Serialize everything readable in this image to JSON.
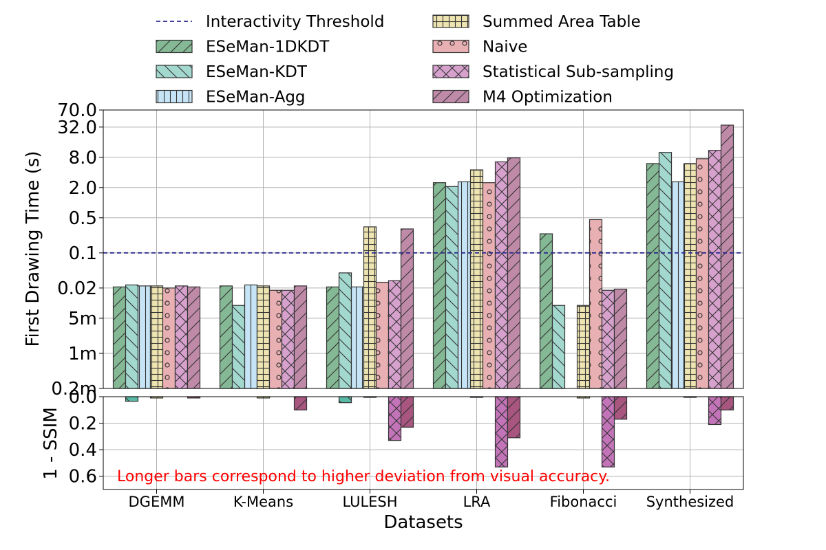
{
  "chart_data": {
    "type": "bar",
    "xlabel": "Datasets",
    "categories": [
      "DGEMM",
      "K-Means",
      "LULESH",
      "LRA",
      "Fibonacci",
      "Synthesized"
    ],
    "threshold": {
      "name": "Interactivity Threshold",
      "value": 0.1,
      "color": "#2b2b8f"
    },
    "legend_position": "top",
    "grid": true,
    "top": {
      "ylabel": "First Drawing Time (s)",
      "scale": "log",
      "ylim": [
        0.0002,
        70.0
      ],
      "ticks": [
        {
          "value": 0.0002,
          "label": "0.2m"
        },
        {
          "value": 0.001,
          "label": "1m"
        },
        {
          "value": 0.005,
          "label": "5m"
        },
        {
          "value": 0.02,
          "label": "0.02"
        },
        {
          "value": 0.1,
          "label": "0.1"
        },
        {
          "value": 0.5,
          "label": "0.5"
        },
        {
          "value": 2.0,
          "label": "2.0"
        },
        {
          "value": 8.0,
          "label": "8.0"
        },
        {
          "value": 32.0,
          "label": "32.0"
        },
        {
          "value": 70.0,
          "label": "70.0"
        }
      ],
      "series": [
        {
          "name": "ESeMan-1DKDT",
          "color": "#85b894",
          "pattern": "diag",
          "values": [
            0.021,
            0.022,
            0.021,
            2.5,
            0.24,
            6.0
          ]
        },
        {
          "name": "ESeMan-KDT",
          "color": "#a3d8cf",
          "pattern": "backdiag",
          "values": [
            0.023,
            0.009,
            0.04,
            2.1,
            0.009,
            10.0
          ]
        },
        {
          "name": "ESeMan-Agg",
          "color": "#c6e4f5",
          "pattern": "vert",
          "values": [
            0.022,
            0.023,
            0.021,
            2.6,
            null,
            2.6
          ]
        },
        {
          "name": "Summed Area Table",
          "color": "#ede4b1",
          "pattern": "grid",
          "values": [
            0.022,
            0.022,
            0.33,
            4.5,
            0.009,
            6.0
          ]
        },
        {
          "name": "Naive",
          "color": "#e8b0b3",
          "pattern": "dots",
          "values": [
            0.02,
            0.018,
            0.026,
            2.5,
            0.46,
            7.5
          ]
        },
        {
          "name": "Statistical Sub-sampling",
          "color": "#d7a1ce",
          "pattern": "cross",
          "values": [
            0.022,
            0.018,
            0.028,
            6.5,
            0.018,
            11.0
          ]
        },
        {
          "name": "M4 Optimization",
          "color": "#bf8aa8",
          "pattern": "diag",
          "values": [
            0.021,
            0.022,
            0.3,
            7.8,
            0.019,
            35.0
          ]
        }
      ]
    },
    "bottom": {
      "ylabel": "1 - SSIM",
      "ylim": [
        0.0,
        0.7
      ],
      "inverted": true,
      "ticks": [
        {
          "value": 0.0,
          "label": "0.0"
        },
        {
          "value": 0.2,
          "label": "0.2"
        },
        {
          "value": 0.4,
          "label": "0.4"
        },
        {
          "value": 0.6,
          "label": "0.6"
        }
      ],
      "series": [
        {
          "name": "ESeMan-1DKDT",
          "color": "#4fa070",
          "pattern": "diag",
          "values": [
            0.0,
            0.0,
            0.0,
            0.0,
            0.0,
            0.0
          ]
        },
        {
          "name": "ESeMan-KDT",
          "color": "#5ab9a4",
          "pattern": "backdiag",
          "values": [
            0.035,
            0.0,
            0.045,
            0.0,
            0.0,
            0.0
          ]
        },
        {
          "name": "ESeMan-Agg",
          "color": "#86c2e6",
          "pattern": "vert",
          "values": [
            0.0,
            0.0,
            0.0,
            0.0,
            0.0,
            0.0
          ]
        },
        {
          "name": "Summed Area Table",
          "color": "#dccf7b",
          "pattern": "grid",
          "values": [
            0.01,
            0.01,
            0.005,
            0.005,
            0.01,
            0.005
          ]
        },
        {
          "name": "Naive",
          "color": "#d98d91",
          "pattern": "dots",
          "values": [
            0.0,
            0.0,
            0.0,
            0.0,
            0.0,
            0.0
          ]
        },
        {
          "name": "Statistical Sub-sampling",
          "color": "#c374b8",
          "pattern": "cross",
          "values": [
            0.0,
            0.0,
            0.33,
            0.53,
            0.53,
            0.21
          ]
        },
        {
          "name": "M4 Optimization",
          "color": "#a8567f",
          "pattern": "diag",
          "values": [
            0.01,
            0.1,
            0.23,
            0.31,
            0.17,
            0.1
          ]
        }
      ]
    },
    "annotation": "Longer bars correspond to higher deviation from visual accuracy.",
    "annotation_color": "#ff0000"
  }
}
